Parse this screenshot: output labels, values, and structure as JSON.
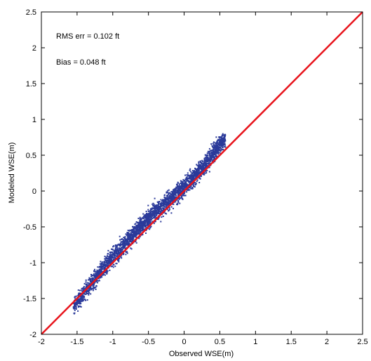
{
  "chart_data": {
    "type": "scatter",
    "title": "",
    "xlabel": "Observed WSE(m)",
    "ylabel": "Modeled WSE(m)",
    "xlim": [
      -2,
      2.5
    ],
    "ylim": [
      -2,
      2.5
    ],
    "x_ticks": [
      "-2",
      "-1.5",
      "-1",
      "-0.5",
      "0",
      "0.5",
      "1",
      "1.5",
      "2",
      "2.5"
    ],
    "y_ticks": [
      "-2",
      "-1.5",
      "-1",
      "-0.5",
      "0",
      "0.5",
      "1",
      "1.5",
      "2",
      "2.5"
    ],
    "grid": false,
    "annotations": [
      "RMS err = 0.102 ft",
      "Bias = 0.048 ft"
    ],
    "reference_line": {
      "type": "1:1",
      "from": [
        -2,
        -2
      ],
      "to": [
        2.5,
        2.5
      ],
      "color": "#e8141c"
    },
    "series": [
      {
        "marker_color": "#2b3a9a",
        "point_count": 3000,
        "x_range": [
          -1.55,
          0.58
        ],
        "y_range": [
          -1.72,
          0.8
        ],
        "trend_points": [
          {
            "x": -1.5,
            "y": -1.55
          },
          {
            "x": -1.2,
            "y": -1.15
          },
          {
            "x": -1.0,
            "y": -0.92
          },
          {
            "x": -0.5,
            "y": -0.38
          },
          {
            "x": 0.0,
            "y": 0.05
          },
          {
            "x": 0.3,
            "y": 0.38
          },
          {
            "x": 0.55,
            "y": 0.72
          }
        ],
        "spread": 0.09
      }
    ]
  }
}
